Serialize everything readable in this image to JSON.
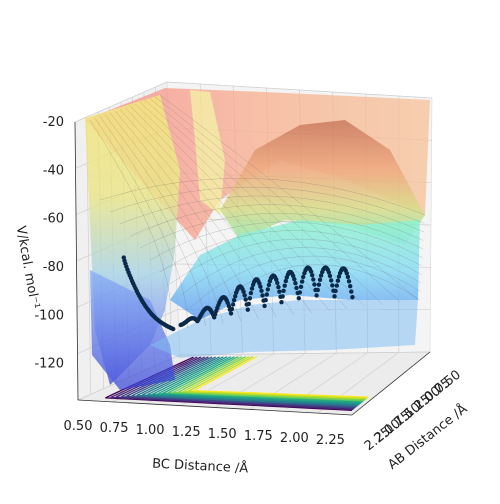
{
  "chart_data": {
    "type": "surface",
    "projection": "3d",
    "grid": true,
    "zlabel": "V/kcal. mol⁻¹",
    "xlabel": "BC Distance /Å",
    "ylabel": "AB Distance /Å",
    "z_ticks": [
      "-20",
      "-40",
      "-60",
      "-80",
      "-100",
      "-120"
    ],
    "x_ticks": [
      "0.50",
      "0.75",
      "1.00",
      "1.25",
      "1.50",
      "1.75",
      "2.00",
      "2.25"
    ],
    "y_ticks": [
      "2.25",
      "2.00",
      "1.75",
      "1.50",
      "1.25",
      "1.00",
      "0.75",
      "0.50"
    ],
    "xlim": [
      0.5,
      2.4
    ],
    "ylim": [
      0.5,
      2.3
    ],
    "zlim": [
      -135,
      -20
    ],
    "surface": {
      "colormap": "jet",
      "alpha": 0.45,
      "plateau_value": -20,
      "well_value": -120
    },
    "contours": {
      "colormap": "viridis",
      "offset": -135,
      "levels": 18
    },
    "trajectory": {
      "color": "#0b2a4a",
      "start": {
        "bc": 0.62,
        "ab": 2.2,
        "v": -80
      },
      "saddle": {
        "bc": 1.1,
        "ab": 1.05,
        "v": -105
      },
      "end": {
        "bc": 2.35,
        "ab": 0.6,
        "v": -88
      },
      "oscillation_amplitude": 12,
      "oscillation_cycles": 10
    }
  }
}
